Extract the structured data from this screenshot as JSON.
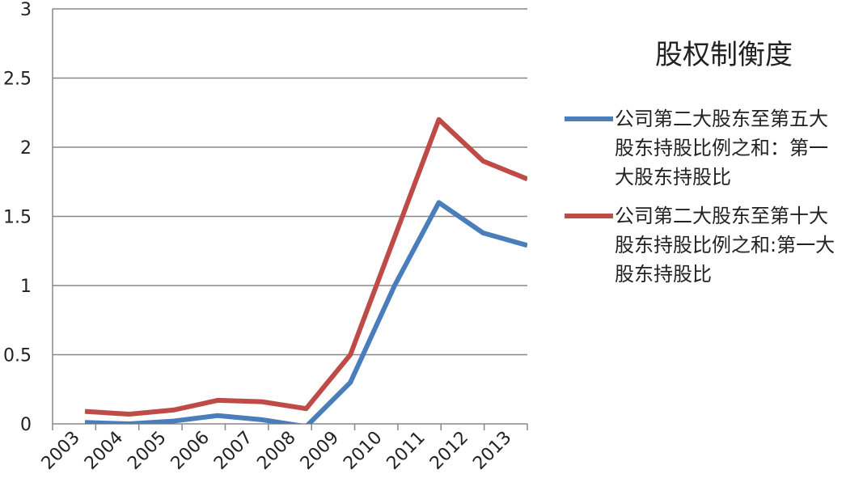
{
  "chart_data": {
    "type": "line",
    "title": "股权制衡度",
    "categories": [
      "2003",
      "2004",
      "2005",
      "2006",
      "2007",
      "2008",
      "2009",
      "2010",
      "2011",
      "2012",
      "2013"
    ],
    "series": [
      {
        "name": "公司第二大股东至第五大股东持股比例之和：第一大股东持股比",
        "color": "#4a7ebb",
        "values": [
          0.01,
          0.0,
          0.02,
          0.06,
          0.03,
          -0.02,
          0.3,
          1.0,
          1.6,
          1.38,
          1.29
        ]
      },
      {
        "name": "公司第二大股东至第十大股东持股比例之和:第一大股东持股比",
        "color": "#be4b48",
        "values": [
          0.09,
          0.07,
          0.1,
          0.17,
          0.16,
          0.11,
          0.5,
          1.35,
          2.2,
          1.9,
          1.77
        ]
      }
    ],
    "ylim": [
      0,
      3
    ],
    "yticks": [
      0,
      {
        "value": 0.5,
        "label": "0.5"
      },
      1,
      {
        "value": 1.5,
        "label": "1.5"
      },
      2,
      {
        "value": 2.5,
        "label": "2.5"
      },
      3
    ],
    "grid": true
  }
}
